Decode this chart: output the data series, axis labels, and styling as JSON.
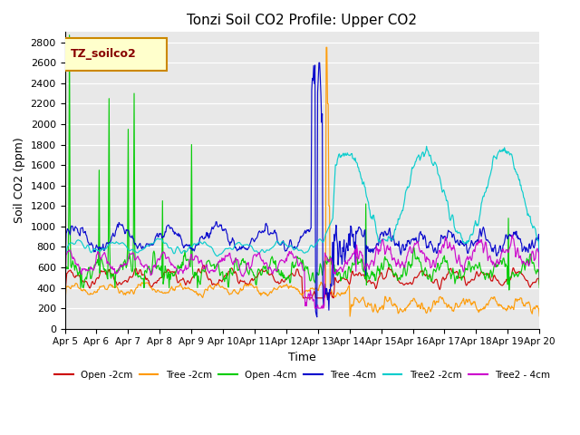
{
  "title": "Tonzi Soil CO2 Profile: Upper CO2",
  "xlabel": "Time",
  "ylabel": "Soil CO2 (ppm)",
  "ylim": [
    0,
    2900
  ],
  "xlim": [
    0,
    15
  ],
  "plot_bg_color": "#e8e8e8",
  "legend_label": "TZ_soilco2",
  "series": {
    "Open_2cm": {
      "color": "#cc0000",
      "label": "Open -2cm"
    },
    "Tree_2cm": {
      "color": "#ff9900",
      "label": "Tree -2cm"
    },
    "Open_4cm": {
      "color": "#00cc00",
      "label": "Open -4cm"
    },
    "Tree_4cm": {
      "color": "#0000cc",
      "label": "Tree -4cm"
    },
    "Tree2_2cm": {
      "color": "#00cccc",
      "label": "Tree2 -2cm"
    },
    "Tree2_4cm": {
      "color": "#cc00cc",
      "label": "Tree2 - 4cm"
    }
  },
  "xtick_labels": [
    "Apr 5",
    "Apr 6",
    "Apr 7",
    "Apr 8",
    "Apr 9",
    "Apr 10",
    "Apr 11",
    "Apr 12",
    "Apr 13",
    "Apr 14",
    "Apr 15",
    "Apr 16",
    "Apr 17",
    "Apr 18",
    "Apr 19",
    "Apr 20"
  ],
  "ytick_labels": [
    0,
    200,
    400,
    600,
    800,
    1000,
    1200,
    1400,
    1600,
    1800,
    2000,
    2200,
    2400,
    2600,
    2800
  ]
}
